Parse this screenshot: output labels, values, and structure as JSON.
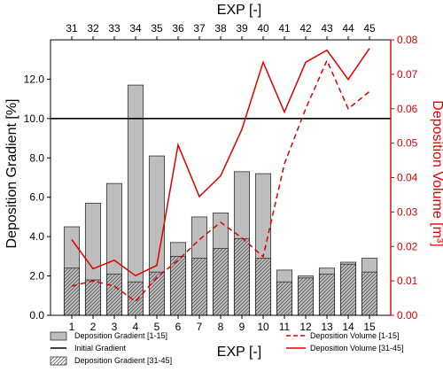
{
  "chart_data": {
    "type": "bar",
    "title": "",
    "xlabel_bottom": "EXP [-]",
    "xlabel_top": "EXP [-]",
    "ylabel_left": "Deposition Gradient [%]",
    "ylabel_right": "Deposition Volume [m³]",
    "categories_bottom": [
      "1",
      "2",
      "3",
      "4",
      "5",
      "6",
      "7",
      "8",
      "9",
      "10",
      "11",
      "12",
      "13",
      "14",
      "15"
    ],
    "categories_top": [
      "31",
      "32",
      "33",
      "34",
      "35",
      "36",
      "37",
      "38",
      "39",
      "40",
      "41",
      "42",
      "43",
      "44",
      "45"
    ],
    "ylim_left": [
      0,
      14
    ],
    "ylim_right": [
      0,
      0.08
    ],
    "yticks_left": [
      "0.0",
      "2.0",
      "4.0",
      "6.0",
      "8.0",
      "10.0",
      "12.0"
    ],
    "yticks_right": [
      "0.00",
      "0.01",
      "0.02",
      "0.03",
      "0.04",
      "0.05",
      "0.06",
      "0.07",
      "0.08"
    ],
    "initial_gradient": 10.0,
    "series": [
      {
        "name": "Deposition Gradient [1-15]",
        "kind": "bar",
        "fill": "#bdbdbd",
        "values": [
          4.5,
          5.7,
          6.7,
          11.7,
          8.1,
          3.7,
          5.0,
          5.2,
          7.3,
          7.2,
          2.3,
          2.0,
          2.4,
          2.7,
          2.9
        ]
      },
      {
        "name": "Deposition Gradient [31-45]",
        "kind": "bar",
        "fill": "hatch",
        "values": [
          2.4,
          1.8,
          2.1,
          1.7,
          2.2,
          3.0,
          2.9,
          3.4,
          3.9,
          2.9,
          1.7,
          1.9,
          2.1,
          2.6,
          2.2
        ]
      },
      {
        "name": "Deposition Volume [1-15]",
        "kind": "line",
        "dash": true,
        "color": "#e00000",
        "values": [
          0.0085,
          0.01,
          0.0085,
          0.004,
          0.011,
          0.016,
          0.022,
          0.027,
          0.0225,
          0.017,
          0.044,
          0.06,
          0.074,
          0.06,
          0.065
        ]
      },
      {
        "name": "Deposition Volume [31-45]",
        "kind": "line",
        "dash": false,
        "color": "#e00000",
        "values": [
          0.022,
          0.0135,
          0.016,
          0.0115,
          0.0145,
          0.0495,
          0.0345,
          0.0405,
          0.054,
          0.0735,
          0.059,
          0.0735,
          0.077,
          0.0685,
          0.0775
        ]
      }
    ],
    "legend": {
      "placement": "bottom",
      "items": [
        {
          "label": "Deposition Gradient [1-15]",
          "symbol": "bar"
        },
        {
          "label": "Initial Gradient",
          "symbol": "black-line"
        },
        {
          "label": "Deposition Gradient [31-45]",
          "symbol": "hatch"
        },
        {
          "label": "Deposition Volume [1-15]",
          "symbol": "red-dash"
        },
        {
          "label": "Deposition Volume [31-45]",
          "symbol": "red-line"
        }
      ]
    },
    "colors": {
      "bar": "#bdbdbd",
      "volume": "#e00000",
      "initial": "#000000"
    }
  }
}
